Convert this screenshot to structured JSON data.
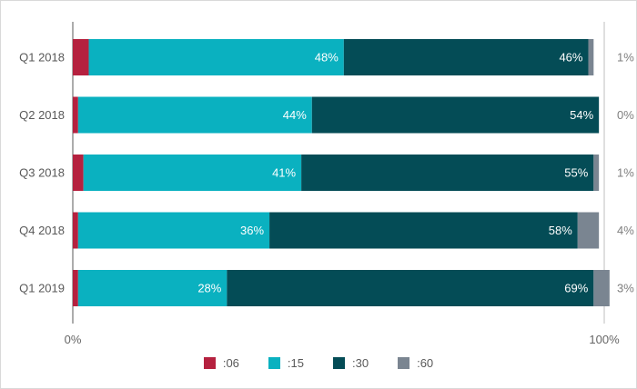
{
  "chart_data": {
    "type": "bar",
    "orientation": "horizontal",
    "stacked": "percent",
    "categories": [
      "Q1 2018",
      "Q2 2018",
      "Q3 2018",
      "Q4 2018",
      "Q1 2019"
    ],
    "series": [
      {
        "name": ":06",
        "color": "#b5213f",
        "values": [
          3,
          1,
          2,
          1,
          1
        ]
      },
      {
        "name": ":15",
        "color": "#0ab1c0",
        "values": [
          48,
          44,
          41,
          36,
          28
        ]
      },
      {
        "name": ":30",
        "color": "#044c56",
        "values": [
          46,
          54,
          55,
          58,
          69
        ]
      },
      {
        "name": ":60",
        "color": "#7a8591",
        "values": [
          1,
          0,
          1,
          4,
          3
        ]
      }
    ],
    "xlim": [
      0,
      100
    ],
    "x_ticks": [
      "0%",
      "100%"
    ],
    "grid": false,
    "legend_position": "bottom",
    "data_label_suffix": "%"
  }
}
